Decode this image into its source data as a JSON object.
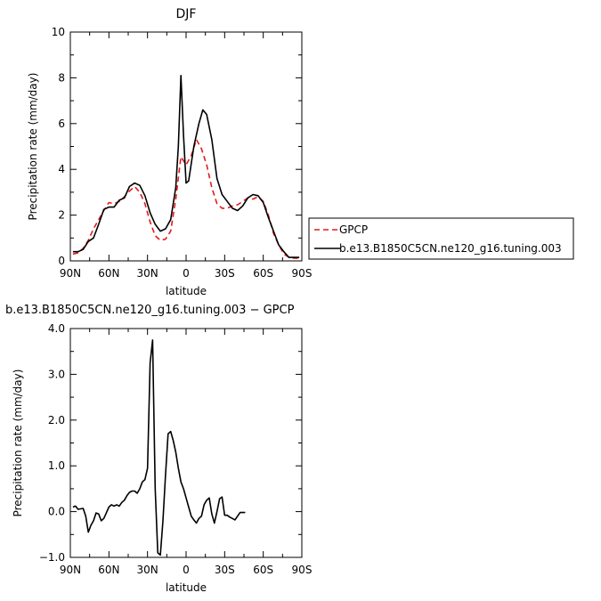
{
  "chart_data": [
    {
      "type": "line",
      "title": "DJF",
      "xlabel": "latitude",
      "ylabel": "Precipitation rate (mm/day)",
      "xlim": [
        90,
        -90
      ],
      "ylim": [
        0,
        10
      ],
      "x_ticks": [
        90,
        60,
        30,
        0,
        -30,
        -60,
        -90
      ],
      "x_tick_labels": [
        "90N",
        "60N",
        "30N",
        "0",
        "30S",
        "60S",
        "90S"
      ],
      "y_ticks": [
        0,
        2,
        4,
        6,
        8,
        10
      ],
      "y_tick_labels": [
        "0",
        "2",
        "4",
        "6",
        "8",
        "10"
      ],
      "legend_position": "right",
      "series": [
        {
          "name": "GPCP",
          "color": "#e41a1c",
          "dash": "dashed",
          "points": [
            [
              88,
              0.3
            ],
            [
              84,
              0.35
            ],
            [
              80,
              0.55
            ],
            [
              76,
              0.9
            ],
            [
              72,
              1.4
            ],
            [
              68,
              1.8
            ],
            [
              64,
              2.2
            ],
            [
              60,
              2.55
            ],
            [
              56,
              2.5
            ],
            [
              52,
              2.6
            ],
            [
              48,
              2.8
            ],
            [
              44,
              3.05
            ],
            [
              40,
              3.25
            ],
            [
              36,
              3.0
            ],
            [
              32,
              2.5
            ],
            [
              28,
              1.7
            ],
            [
              24,
              1.1
            ],
            [
              20,
              0.9
            ],
            [
              16,
              0.95
            ],
            [
              12,
              1.3
            ],
            [
              8,
              2.7
            ],
            [
              4,
              4.55
            ],
            [
              0,
              4.2
            ],
            [
              -4,
              4.6
            ],
            [
              -8,
              5.3
            ],
            [
              -12,
              4.9
            ],
            [
              -16,
              4.2
            ],
            [
              -20,
              3.2
            ],
            [
              -24,
              2.5
            ],
            [
              -28,
              2.3
            ],
            [
              -32,
              2.3
            ],
            [
              -36,
              2.4
            ],
            [
              -40,
              2.45
            ],
            [
              -44,
              2.6
            ],
            [
              -48,
              2.75
            ],
            [
              -52,
              2.7
            ],
            [
              -56,
              2.8
            ],
            [
              -60,
              2.6
            ],
            [
              -64,
              2.0
            ],
            [
              -68,
              1.2
            ],
            [
              -72,
              0.7
            ],
            [
              -76,
              0.3
            ],
            [
              -80,
              0.15
            ],
            [
              -84,
              0.12
            ],
            [
              -88,
              0.12
            ]
          ]
        },
        {
          "name": "b.e13.B1850C5CN.ne120_g16.tuning.003",
          "color": "#000000",
          "dash": "solid",
          "points": [
            [
              88,
              0.4
            ],
            [
              84,
              0.4
            ],
            [
              80,
              0.5
            ],
            [
              76,
              0.85
            ],
            [
              72,
              1.0
            ],
            [
              68,
              1.6
            ],
            [
              64,
              2.25
            ],
            [
              60,
              2.35
            ],
            [
              56,
              2.35
            ],
            [
              52,
              2.65
            ],
            [
              48,
              2.75
            ],
            [
              44,
              3.25
            ],
            [
              40,
              3.4
            ],
            [
              36,
              3.3
            ],
            [
              32,
              2.85
            ],
            [
              28,
              2.1
            ],
            [
              24,
              1.6
            ],
            [
              20,
              1.3
            ],
            [
              16,
              1.4
            ],
            [
              12,
              1.8
            ],
            [
              8,
              3.2
            ],
            [
              6,
              5.0
            ],
            [
              4,
              8.1
            ],
            [
              2,
              5.5
            ],
            [
              0,
              3.4
            ],
            [
              -2,
              3.5
            ],
            [
              -6,
              5.0
            ],
            [
              -10,
              6.0
            ],
            [
              -13,
              6.6
            ],
            [
              -16,
              6.4
            ],
            [
              -20,
              5.3
            ],
            [
              -24,
              3.6
            ],
            [
              -28,
              2.9
            ],
            [
              -32,
              2.6
            ],
            [
              -36,
              2.3
            ],
            [
              -40,
              2.2
            ],
            [
              -44,
              2.4
            ],
            [
              -48,
              2.75
            ],
            [
              -52,
              2.9
            ],
            [
              -56,
              2.85
            ],
            [
              -60,
              2.55
            ],
            [
              -64,
              1.9
            ],
            [
              -68,
              1.3
            ],
            [
              -72,
              0.7
            ],
            [
              -76,
              0.4
            ],
            [
              -80,
              0.15
            ],
            [
              -84,
              0.15
            ],
            [
              -88,
              0.15
            ]
          ]
        }
      ]
    },
    {
      "type": "line",
      "title": "b.e13.B1850C5CN.ne120_g16.tuning.003 − GPCP",
      "xlabel": "latitude",
      "ylabel": "Precipitation rate (mm/day)",
      "xlim": [
        90,
        -90
      ],
      "ylim": [
        -1.0,
        4.0
      ],
      "x_ticks": [
        90,
        60,
        30,
        0,
        -30,
        -60,
        -90
      ],
      "x_tick_labels": [
        "90N",
        "60N",
        "30N",
        "0",
        "30S",
        "60S",
        "90S"
      ],
      "y_ticks": [
        -1.0,
        0.0,
        1.0,
        2.0,
        3.0,
        4.0
      ],
      "y_tick_labels": [
        "−1.0",
        "0.0",
        "1.0",
        "2.0",
        "3.0",
        "4.0"
      ],
      "series": [
        {
          "color": "#000000",
          "dash": "solid",
          "points": [
            [
              88,
              0.1
            ],
            [
              86,
              0.12
            ],
            [
              84,
              0.05
            ],
            [
              80,
              0.07
            ],
            [
              78,
              -0.1
            ],
            [
              76,
              -0.45
            ],
            [
              74,
              -0.3
            ],
            [
              72,
              -0.2
            ],
            [
              70,
              -0.03
            ],
            [
              68,
              -0.05
            ],
            [
              66,
              -0.2
            ],
            [
              64,
              -0.15
            ],
            [
              62,
              -0.03
            ],
            [
              60,
              0.1
            ],
            [
              58,
              0.15
            ],
            [
              56,
              0.12
            ],
            [
              54,
              0.15
            ],
            [
              52,
              0.12
            ],
            [
              50,
              0.2
            ],
            [
              48,
              0.25
            ],
            [
              46,
              0.35
            ],
            [
              44,
              0.42
            ],
            [
              42,
              0.45
            ],
            [
              40,
              0.45
            ],
            [
              38,
              0.4
            ],
            [
              36,
              0.5
            ],
            [
              34,
              0.65
            ],
            [
              32,
              0.7
            ],
            [
              30,
              0.95
            ],
            [
              28,
              3.25
            ],
            [
              26,
              3.75
            ],
            [
              24,
              0.5
            ],
            [
              22,
              -0.9
            ],
            [
              20,
              -0.95
            ],
            [
              18,
              -0.2
            ],
            [
              16,
              0.8
            ],
            [
              14,
              1.7
            ],
            [
              12,
              1.75
            ],
            [
              10,
              1.55
            ],
            [
              8,
              1.3
            ],
            [
              6,
              0.95
            ],
            [
              4,
              0.65
            ],
            [
              2,
              0.5
            ],
            [
              0,
              0.3
            ],
            [
              -2,
              0.1
            ],
            [
              -4,
              -0.1
            ],
            [
              -6,
              -0.18
            ],
            [
              -8,
              -0.25
            ],
            [
              -10,
              -0.15
            ],
            [
              -12,
              -0.1
            ],
            [
              -14,
              0.15
            ],
            [
              -16,
              0.25
            ],
            [
              -18,
              0.3
            ],
            [
              -20,
              -0.05
            ],
            [
              -22,
              -0.25
            ],
            [
              -24,
              0.0
            ],
            [
              -26,
              0.28
            ],
            [
              -28,
              0.32
            ],
            [
              -30,
              -0.08
            ],
            [
              -32,
              -0.08
            ],
            [
              -34,
              -0.12
            ],
            [
              -36,
              -0.15
            ],
            [
              -38,
              -0.18
            ],
            [
              -40,
              -0.1
            ],
            [
              -42,
              -0.02
            ],
            [
              -44,
              -0.02
            ],
            [
              -46,
              -0.02
            ]
          ]
        }
      ]
    }
  ]
}
